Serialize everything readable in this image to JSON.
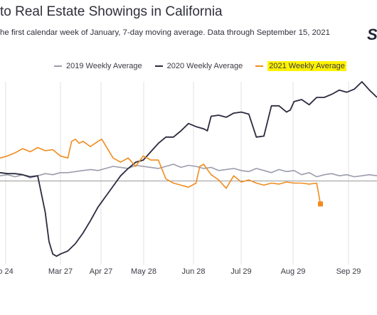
{
  "title": "to Real Estate Showings in California",
  "subtitle": "he first calendar week of January, 7-day moving average. Data through September 15, 2021",
  "brand_mark": "S",
  "chart_data": {
    "type": "line",
    "title": "to Real Estate Showings in California",
    "subtitle": "he first calendar week of January, 7-day moving average. Data through September 15, 2021",
    "xlabel": "",
    "ylabel": "",
    "x_ticks": [
      "o 24",
      "Mar 27",
      "Apr 27",
      "May 28",
      "Jun 28",
      "Jul 29",
      "Aug 29",
      "Sep 29"
    ],
    "x_domain": [
      0,
      100
    ],
    "ylim": [
      -0.8,
      0.95
    ],
    "grid": "vertical",
    "legend_position": "top",
    "baseline": 0,
    "series": [
      {
        "name": "2019 Weekly Average",
        "color": "#9b9dac",
        "x": [
          0,
          2,
          4,
          6,
          8,
          10,
          12,
          14,
          16,
          18,
          20,
          22,
          24,
          26,
          28,
          30,
          32,
          34,
          36,
          38,
          40,
          42,
          44,
          46,
          48,
          50,
          52,
          54,
          56,
          58,
          60,
          62,
          64,
          66,
          68,
          70,
          72,
          74,
          76,
          78,
          80,
          82,
          84,
          86,
          88,
          90,
          92,
          94,
          96,
          98,
          100
        ],
        "values": [
          0.05,
          0.06,
          0.04,
          0.06,
          0.03,
          0.05,
          0.07,
          0.06,
          0.08,
          0.08,
          0.09,
          0.1,
          0.11,
          0.1,
          0.12,
          0.14,
          0.13,
          0.12,
          0.15,
          0.14,
          0.13,
          0.12,
          0.14,
          0.16,
          0.13,
          0.15,
          0.14,
          0.12,
          0.13,
          0.1,
          0.11,
          0.12,
          0.1,
          0.09,
          0.12,
          0.1,
          0.08,
          0.11,
          0.09,
          0.1,
          0.06,
          0.08,
          0.04,
          0.06,
          0.07,
          0.05,
          0.06,
          0.04,
          0.05,
          0.06,
          0.05
        ]
      },
      {
        "name": "2020 Weekly Average",
        "color": "#2b2b40",
        "x": [
          0,
          2,
          4,
          6,
          8,
          10,
          12,
          13,
          14,
          15,
          16,
          18,
          20,
          22,
          24,
          26,
          28,
          30,
          32,
          34,
          36,
          38,
          40,
          42,
          44,
          46,
          48,
          50,
          52,
          54,
          55,
          56,
          58,
          60,
          62,
          64,
          66,
          68,
          70,
          72,
          74,
          76,
          77,
          78,
          80,
          82,
          84,
          86,
          88,
          90,
          92,
          94,
          96,
          98,
          100
        ],
        "values": [
          0.08,
          0.07,
          0.07,
          0.06,
          0.04,
          0.05,
          -0.3,
          -0.58,
          -0.7,
          -0.72,
          -0.7,
          -0.67,
          -0.6,
          -0.5,
          -0.38,
          -0.25,
          -0.15,
          -0.05,
          0.05,
          0.12,
          0.18,
          0.2,
          0.28,
          0.36,
          0.42,
          0.42,
          0.48,
          0.55,
          0.52,
          0.5,
          0.48,
          0.62,
          0.63,
          0.61,
          0.65,
          0.66,
          0.64,
          0.42,
          0.43,
          0.72,
          0.72,
          0.66,
          0.68,
          0.76,
          0.78,
          0.73,
          0.8,
          0.8,
          0.83,
          0.87,
          0.85,
          0.88,
          0.95,
          0.87,
          0.8
        ]
      },
      {
        "name": "2021 Weekly Average",
        "color": "#f08c1f",
        "x": [
          0,
          2,
          4,
          6,
          8,
          10,
          12,
          14,
          16,
          18,
          19,
          20,
          21,
          22,
          24,
          26,
          27,
          28,
          29,
          30,
          32,
          34,
          36,
          38,
          40,
          42,
          44,
          46,
          48,
          50,
          52,
          53,
          54,
          56,
          58,
          60,
          62,
          64,
          66,
          68,
          70,
          72,
          74,
          76,
          78,
          80,
          82,
          84,
          85
        ],
        "values": [
          0.22,
          0.24,
          0.27,
          0.31,
          0.28,
          0.32,
          0.29,
          0.3,
          0.24,
          0.22,
          0.38,
          0.4,
          0.36,
          0.38,
          0.33,
          0.38,
          0.4,
          0.34,
          0.28,
          0.22,
          0.18,
          0.22,
          0.14,
          0.24,
          0.2,
          0.2,
          0.02,
          -0.02,
          -0.04,
          -0.06,
          -0.02,
          0.14,
          0.16,
          0.06,
          0.01,
          -0.07,
          0.05,
          -0.01,
          0.01,
          -0.02,
          -0.04,
          -0.02,
          -0.03,
          -0.01,
          -0.02,
          -0.02,
          -0.03,
          -0.02,
          -0.22
        ]
      }
    ]
  }
}
